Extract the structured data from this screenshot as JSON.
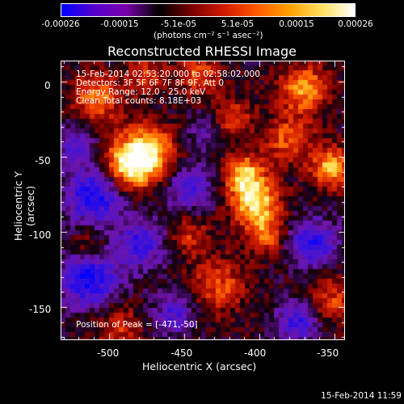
{
  "colorbar": {
    "ticks": [
      "-0.00026",
      "-0.00015",
      "-5.1e-05",
      "5.1e-05",
      "0.00015",
      "0.00026"
    ],
    "unit_label": "(photons cm⁻² s⁻¹ asec⁻²)",
    "colors": [
      "#0000ff",
      "#5500cc",
      "#7a00aa",
      "#000000",
      "#7a0000",
      "#d21a00",
      "#ff5a00",
      "#ffa000",
      "#ffe060",
      "#ffffff"
    ]
  },
  "image": {
    "title": "Reconstructed RHESSI Image",
    "info_lines": [
      "15-Feb-2014 02:53:20.000 to 02:58:02.000",
      "Detectors: 3F 5F 6F 7F 8F 9F, Att 0",
      "Energy Range: 12.0 - 25.0 keV",
      "Clean     Total counts: 8.18E+03"
    ],
    "peak_label": "Position of Peak = [-471,-50]",
    "x_axis": {
      "label": "Heliocentric X (arcsec)",
      "ticks": [
        "-500",
        "-450",
        "-400",
        "-350"
      ],
      "range": [
        -532,
        -343
      ]
    },
    "y_axis": {
      "label": "Heliocentric Y (arcsec)",
      "ticks": [
        "0",
        "-50",
        "-100",
        "-150"
      ],
      "range": [
        -172,
        14
      ]
    }
  },
  "timestamp": "15-Feb-2014 11:59"
}
